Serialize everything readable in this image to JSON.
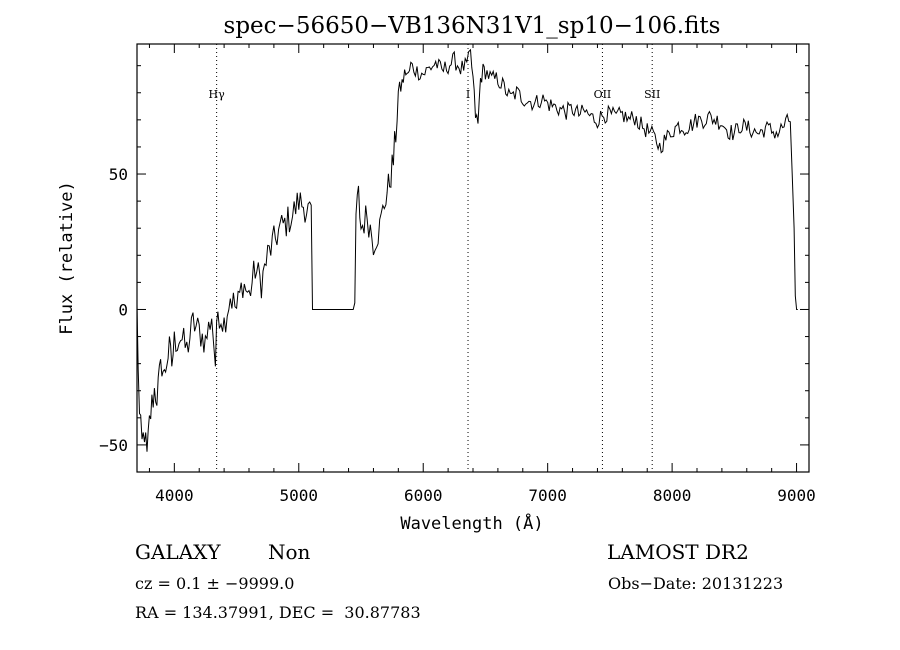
{
  "chart_data": {
    "type": "line",
    "title": "spec−56650−VB136N31V1_sp10−106.fits",
    "xlabel": "Wavelength (Å)",
    "ylabel": "Flux (relative)",
    "xlim": [
      3700,
      9100
    ],
    "ylim": [
      -60,
      98
    ],
    "xticks": [
      4000,
      5000,
      6000,
      7000,
      8000,
      9000
    ],
    "yticks": [
      -50,
      0,
      50
    ],
    "grid": false,
    "series": [
      {
        "x": [
          3700,
          3720,
          3740,
          3760,
          3780,
          3800,
          3820,
          3840,
          3860,
          3880,
          3900,
          3920,
          3940,
          3960,
          3980,
          4000,
          4050,
          4100,
          4150,
          4200,
          4250,
          4300,
          4330,
          4350,
          4400,
          4450,
          4500,
          4550,
          4600,
          4650,
          4700,
          4750,
          4800,
          4850,
          4900,
          4950,
          5000,
          5050,
          5100,
          5110,
          5130,
          5200,
          5300,
          5400,
          5450,
          5460,
          5480,
          5500,
          5550,
          5600,
          5650,
          5700,
          5720,
          5740,
          5760,
          5780,
          5800,
          5820,
          5840,
          5860,
          5880,
          5900,
          5950,
          6000,
          6050,
          6100,
          6150,
          6200,
          6250,
          6300,
          6350,
          6380,
          6400,
          6420,
          6440,
          6460,
          6480,
          6500,
          6550,
          6600,
          6650,
          6700,
          6750,
          6800,
          6850,
          6900,
          6950,
          7000,
          7050,
          7100,
          7150,
          7200,
          7250,
          7300,
          7350,
          7400,
          7450,
          7500,
          7550,
          7600,
          7650,
          7700,
          7750,
          7800,
          7850,
          7900,
          7950,
          8000,
          8050,
          8100,
          8150,
          8200,
          8250,
          8300,
          8350,
          8400,
          8450,
          8500,
          8550,
          8600,
          8650,
          8700,
          8750,
          8800,
          8850,
          8900,
          8950,
          8980,
          8990,
          9000,
          9010
        ],
        "values": [
          0,
          -40,
          -50,
          -45,
          -55,
          -42,
          -35,
          -30,
          -32,
          -25,
          -20,
          -25,
          -18,
          -15,
          -20,
          -12,
          -10,
          -15,
          -5,
          -8,
          -12,
          -2,
          -20,
          0,
          -5,
          5,
          0,
          10,
          5,
          15,
          10,
          20,
          25,
          30,
          32,
          35,
          40,
          38,
          35,
          0,
          0,
          0,
          0,
          0,
          0,
          35,
          42,
          30,
          35,
          25,
          30,
          42,
          45,
          50,
          55,
          65,
          80,
          82,
          85,
          88,
          86,
          90,
          88,
          87,
          89,
          91,
          88,
          90,
          92,
          89,
          90,
          94,
          85,
          72,
          68,
          85,
          88,
          88,
          85,
          85,
          82,
          78,
          80,
          78,
          77,
          76,
          78,
          76,
          75,
          74,
          73,
          74,
          72,
          73,
          71,
          70,
          72,
          72,
          71,
          72,
          70,
          71,
          68,
          66,
          64,
          60,
          63,
          66,
          68,
          67,
          68,
          70,
          70,
          71,
          70,
          69,
          66,
          65,
          68,
          67,
          66,
          65,
          67,
          66,
          65,
          68,
          70,
          30,
          5,
          0,
          0
        ]
      }
    ],
    "annotations": [
      {
        "label": "Hγ",
        "x": 4340
      },
      {
        "label": "I",
        "x": 6360
      },
      {
        "label": "OII",
        "x": 7440
      },
      {
        "label": "SII",
        "x": 7840
      }
    ]
  },
  "info": {
    "object_class": "GALAXY",
    "subclass": "Non",
    "survey": "LAMOST DR2",
    "cz_text": "cz = 0.1 ± −9999.0",
    "obs_date_text": "Obs−Date: 20131223",
    "radec_text": "RA = 134.37991, DEC =  30.87783"
  }
}
